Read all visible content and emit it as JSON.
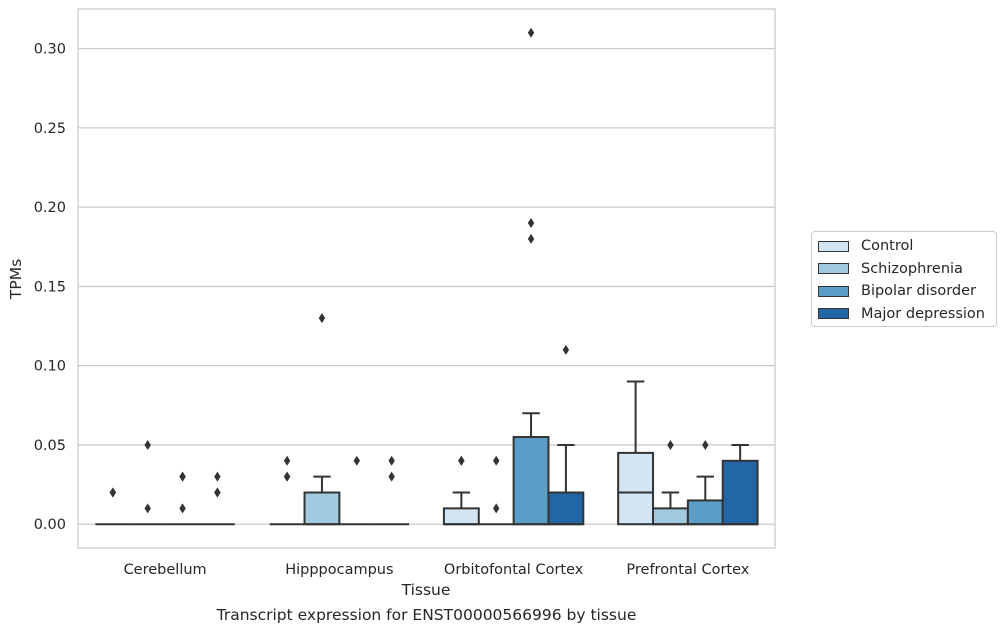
{
  "chart_data": {
    "type": "box",
    "title": "",
    "xlabel": "Tissue",
    "ylabel": "TPMs",
    "caption": "Transcript expression for ENST00000566996 by tissue",
    "ylim": [
      -0.015,
      0.325
    ],
    "yticks": [
      0.0,
      0.05,
      0.1,
      0.15,
      0.2,
      0.25,
      0.3
    ],
    "ytick_labels": [
      "0.00",
      "0.05",
      "0.10",
      "0.15",
      "0.20",
      "0.25",
      "0.30"
    ],
    "grid": "horizontal",
    "legend_placement": "right",
    "categories": [
      "Cerebellum",
      "Hipppocampus",
      "Orbitofontal Cortex",
      "Prefrontal Cortex"
    ],
    "series": [
      {
        "name": "Control",
        "color": "#d3e4f3",
        "boxes": [
          {
            "q1": 0,
            "median": 0,
            "q3": 0,
            "whisker_low": 0,
            "whisker_high": 0,
            "outliers": [
              0.02,
              0.02
            ]
          },
          {
            "q1": 0,
            "median": 0,
            "q3": 0,
            "whisker_low": 0,
            "whisker_high": 0,
            "outliers": [
              0.03,
              0.03,
              0.04
            ]
          },
          {
            "q1": 0,
            "median": 0,
            "q3": 0.01,
            "whisker_low": 0,
            "whisker_high": 0.02,
            "outliers": [
              0.04,
              0.04
            ]
          },
          {
            "q1": 0,
            "median": 0.02,
            "q3": 0.045,
            "whisker_low": 0,
            "whisker_high": 0.09,
            "outliers": []
          }
        ]
      },
      {
        "name": "Schizophrenia",
        "color": "#a1c9e0",
        "boxes": [
          {
            "q1": 0,
            "median": 0,
            "q3": 0,
            "whisker_low": 0,
            "whisker_high": 0,
            "outliers": [
              0.05,
              0.01
            ]
          },
          {
            "q1": 0,
            "median": 0,
            "q3": 0.02,
            "whisker_low": 0,
            "whisker_high": 0.03,
            "outliers": [
              0.13
            ]
          },
          {
            "q1": 0,
            "median": 0,
            "q3": 0,
            "whisker_low": 0,
            "whisker_high": 0,
            "outliers": [
              0.04,
              0.01
            ]
          },
          {
            "q1": 0,
            "median": 0,
            "q3": 0.01,
            "whisker_low": 0,
            "whisker_high": 0.02,
            "outliers": [
              0.05
            ]
          }
        ]
      },
      {
        "name": "Bipolar disorder",
        "color": "#5a9ec8",
        "boxes": [
          {
            "q1": 0,
            "median": 0,
            "q3": 0,
            "whisker_low": 0,
            "whisker_high": 0,
            "outliers": [
              0.01,
              0.03,
              0.03
            ]
          },
          {
            "q1": 0,
            "median": 0,
            "q3": 0,
            "whisker_low": 0,
            "whisker_high": 0,
            "outliers": [
              0.04
            ]
          },
          {
            "q1": 0,
            "median": 0,
            "q3": 0.055,
            "whisker_low": 0,
            "whisker_high": 0.07,
            "outliers": [
              0.31,
              0.19,
              0.18
            ]
          },
          {
            "q1": 0,
            "median": 0,
            "q3": 0.015,
            "whisker_low": 0,
            "whisker_high": 0.03,
            "outliers": [
              0.05
            ]
          }
        ]
      },
      {
        "name": "Major depression",
        "color": "#2266a6",
        "boxes": [
          {
            "q1": 0,
            "median": 0,
            "q3": 0,
            "whisker_low": 0,
            "whisker_high": 0,
            "outliers": [
              0.03,
              0.02,
              0.02
            ]
          },
          {
            "q1": 0,
            "median": 0,
            "q3": 0,
            "whisker_low": 0,
            "whisker_high": 0,
            "outliers": [
              0.04,
              0.03
            ]
          },
          {
            "q1": 0,
            "median": 0,
            "q3": 0.02,
            "whisker_low": 0,
            "whisker_high": 0.05,
            "outliers": [
              0.11
            ]
          },
          {
            "q1": 0,
            "median": 0,
            "q3": 0.04,
            "whisker_low": 0,
            "whisker_high": 0.05,
            "outliers": []
          }
        ]
      }
    ]
  }
}
